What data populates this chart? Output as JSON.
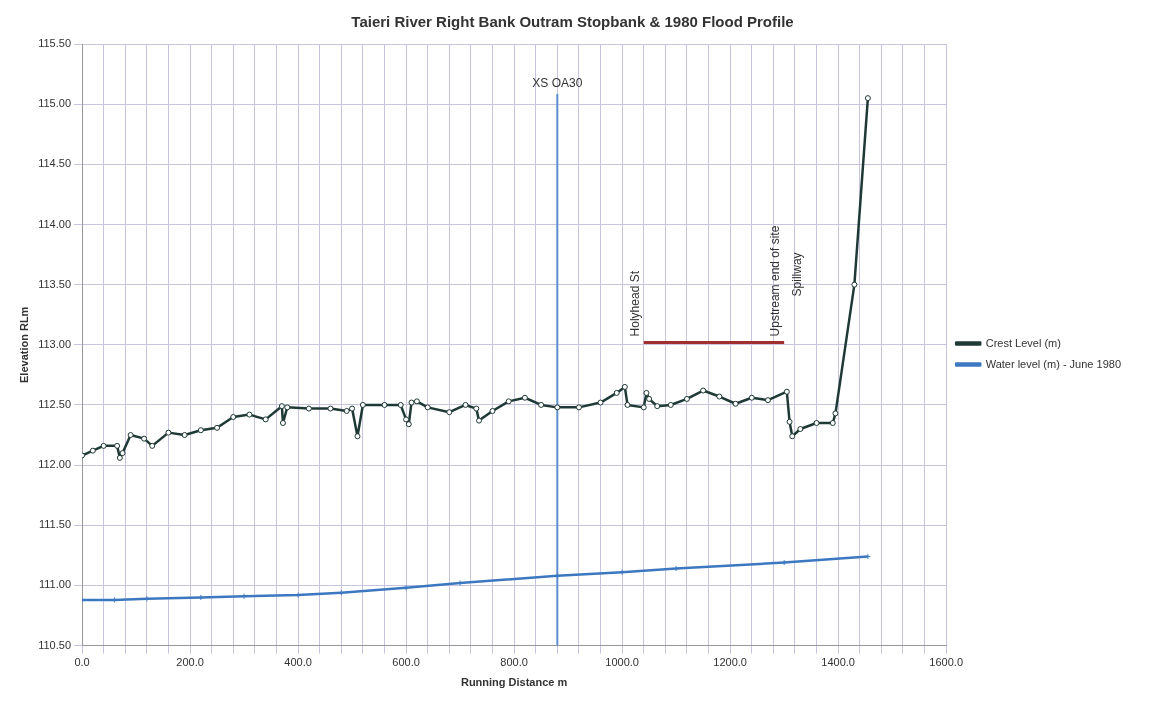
{
  "chart_data": {
    "type": "line",
    "title": "Taieri River Right Bank Outram Stopbank & 1980 Flood Profile",
    "xlabel": "Running Distance m",
    "ylabel": "Elevation RLm",
    "xlim": [
      0,
      1600
    ],
    "ylim": [
      110.5,
      115.5
    ],
    "xticks": [
      {
        "value": 0,
        "label": "0.0"
      },
      {
        "value": 40,
        "label": null
      },
      {
        "value": 80,
        "label": null
      },
      {
        "value": 120,
        "label": null
      },
      {
        "value": 160,
        "label": null
      },
      {
        "value": 200,
        "label": "200.0"
      },
      {
        "value": 240,
        "label": null
      },
      {
        "value": 280,
        "label": null
      },
      {
        "value": 320,
        "label": null
      },
      {
        "value": 360,
        "label": null
      },
      {
        "value": 400,
        "label": "400.0"
      },
      {
        "value": 440,
        "label": null
      },
      {
        "value": 480,
        "label": null
      },
      {
        "value": 520,
        "label": null
      },
      {
        "value": 560,
        "label": null
      },
      {
        "value": 600,
        "label": "600.0"
      },
      {
        "value": 640,
        "label": null
      },
      {
        "value": 680,
        "label": null
      },
      {
        "value": 720,
        "label": null
      },
      {
        "value": 760,
        "label": null
      },
      {
        "value": 800,
        "label": "800.0"
      },
      {
        "value": 840,
        "label": null
      },
      {
        "value": 880,
        "label": null
      },
      {
        "value": 920,
        "label": null
      },
      {
        "value": 960,
        "label": null
      },
      {
        "value": 1000,
        "label": "1000.0"
      },
      {
        "value": 1040,
        "label": null
      },
      {
        "value": 1080,
        "label": null
      },
      {
        "value": 1120,
        "label": null
      },
      {
        "value": 1160,
        "label": null
      },
      {
        "value": 1200,
        "label": "1200.0"
      },
      {
        "value": 1240,
        "label": null
      },
      {
        "value": 1280,
        "label": null
      },
      {
        "value": 1320,
        "label": null
      },
      {
        "value": 1360,
        "label": null
      },
      {
        "value": 1400,
        "label": "1400.0"
      },
      {
        "value": 1440,
        "label": null
      },
      {
        "value": 1480,
        "label": null
      },
      {
        "value": 1520,
        "label": null
      },
      {
        "value": 1560,
        "label": null
      },
      {
        "value": 1600,
        "label": "1600.0"
      }
    ],
    "yticks": [
      {
        "value": 110.5,
        "label": "110.50"
      },
      {
        "value": 111,
        "label": "111.00"
      },
      {
        "value": 111.5,
        "label": "111.50"
      },
      {
        "value": 112,
        "label": "112.00"
      },
      {
        "value": 112.5,
        "label": "112.50"
      },
      {
        "value": 113,
        "label": "113.00"
      },
      {
        "value": 113.5,
        "label": "113.50"
      },
      {
        "value": 114,
        "label": "114.00"
      },
      {
        "value": 114.5,
        "label": "114.50"
      },
      {
        "value": 115,
        "label": "115.00"
      },
      {
        "value": 115.5,
        "label": "115.50"
      }
    ],
    "grid": true,
    "legend": "right",
    "line_style": "solid",
    "series": [
      {
        "name": "Crest Level (m)",
        "color": "#1f3a36",
        "marker": "circle",
        "x": [
          0,
          20,
          40,
          65,
          70,
          75,
          90,
          115,
          130,
          160,
          190,
          220,
          250,
          280,
          310,
          340,
          370,
          372,
          380,
          420,
          460,
          490,
          500,
          510,
          520,
          560,
          590,
          600,
          605,
          610,
          620,
          640,
          680,
          710,
          730,
          735,
          760,
          790,
          820,
          850,
          880,
          920,
          960,
          990,
          1005,
          1010,
          1040,
          1045,
          1050,
          1065,
          1090,
          1120,
          1150,
          1180,
          1210,
          1240,
          1270,
          1305,
          1310,
          1315,
          1330,
          1360,
          1390,
          1395,
          1430,
          1455
        ],
        "values": [
          112.08,
          112.12,
          112.16,
          112.16,
          112.06,
          112.1,
          112.25,
          112.22,
          112.16,
          112.27,
          112.25,
          112.29,
          112.31,
          112.4,
          112.42,
          112.38,
          112.49,
          112.35,
          112.48,
          112.47,
          112.47,
          112.45,
          112.47,
          112.24,
          112.5,
          112.5,
          112.5,
          112.38,
          112.34,
          112.52,
          112.53,
          112.48,
          112.44,
          112.5,
          112.47,
          112.37,
          112.45,
          112.53,
          112.56,
          112.5,
          112.48,
          112.48,
          112.52,
          112.6,
          112.65,
          112.5,
          112.48,
          112.6,
          112.55,
          112.49,
          112.5,
          112.55,
          112.62,
          112.57,
          112.51,
          112.56,
          112.54,
          112.61,
          112.36,
          112.24,
          112.3,
          112.35,
          112.35,
          112.43,
          113.5,
          115.05
        ]
      },
      {
        "name": "Water level (m) - June 1980",
        "color": "#3c78c0",
        "marker": "cross",
        "x": [
          0,
          60,
          120,
          220,
          300,
          400,
          480,
          600,
          700,
          880,
          1000,
          1100,
          1300,
          1455
        ],
        "values": [
          110.88,
          110.88,
          110.89,
          110.9,
          110.91,
          110.92,
          110.94,
          110.98,
          111.02,
          111.08,
          111.11,
          111.14,
          111.19,
          111.24
        ]
      },
      {
        "color": "#a03030",
        "marker": "none",
        "x": [
          1040,
          1300
        ],
        "values": [
          113.02,
          113.02
        ]
      }
    ],
    "ref_lines": [
      {
        "axis": "x",
        "value": 880,
        "label": "XS OA30",
        "color": "#5b8fd0"
      }
    ],
    "annotations": [
      {
        "text": "Holyhead St",
        "x": 1040,
        "y": 113.02
      },
      {
        "text": "Upstream end of site",
        "x": 1300,
        "y": 113.02
      },
      "Spillway"
    ]
  }
}
